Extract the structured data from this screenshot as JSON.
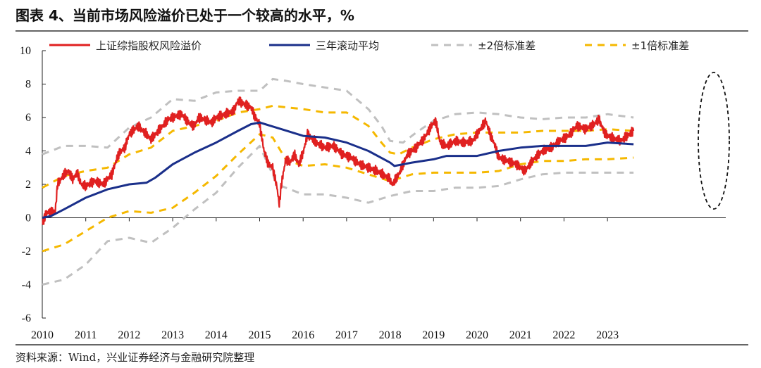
{
  "title": "图表 4、当前市场风险溢价已处于一个较高的水平，%",
  "source": "资料来源：Wind，兴业证券经济与金融研究院整理",
  "chart_data": {
    "type": "line",
    "title": "图表 4、当前市场风险溢价已处于一个较高的水平，%",
    "xlabel": "",
    "ylabel": "",
    "xlim": [
      2010,
      2023.7
    ],
    "ylim": [
      -6,
      10
    ],
    "yticks": [
      -6,
      -4,
      -2,
      0,
      2,
      4,
      6,
      8,
      10
    ],
    "xticks": [
      "2010",
      "2011",
      "2012",
      "2013",
      "2014",
      "2015",
      "2016",
      "2017",
      "2018",
      "2019",
      "2020",
      "2021",
      "2022",
      "2023"
    ],
    "legend_position": "top",
    "grid": false,
    "annotation": "dashed ellipse highlighting 2023",
    "series": [
      {
        "name": "上证综指股权风险溢价",
        "color": "#e02020",
        "style": "solid",
        "points": [
          [
            2010,
            -0.3
          ],
          [
            2010.1,
            0.3
          ],
          [
            2010.3,
            0.4
          ],
          [
            2010.35,
            2.0
          ],
          [
            2010.5,
            2.6
          ],
          [
            2010.6,
            2.8
          ],
          [
            2010.7,
            2.3
          ],
          [
            2010.8,
            2.7
          ],
          [
            2010.9,
            2.0
          ],
          [
            2011,
            1.9
          ],
          [
            2011.2,
            2.2
          ],
          [
            2011.4,
            2.0
          ],
          [
            2011.6,
            2.6
          ],
          [
            2011.75,
            3.8
          ],
          [
            2011.9,
            4.2
          ],
          [
            2012,
            5.0
          ],
          [
            2012.2,
            5.5
          ],
          [
            2012.4,
            5.0
          ],
          [
            2012.5,
            4.7
          ],
          [
            2012.7,
            5.3
          ],
          [
            2012.9,
            5.9
          ],
          [
            2013,
            6.0
          ],
          [
            2013.2,
            6.2
          ],
          [
            2013.4,
            5.6
          ],
          [
            2013.5,
            5.5
          ],
          [
            2013.6,
            6.0
          ],
          [
            2013.8,
            5.8
          ],
          [
            2013.9,
            5.7
          ],
          [
            2014,
            6.0
          ],
          [
            2014.2,
            6.2
          ],
          [
            2014.4,
            6.4
          ],
          [
            2014.5,
            7.0
          ],
          [
            2014.65,
            6.8
          ],
          [
            2014.8,
            6.6
          ],
          [
            2014.9,
            6.0
          ],
          [
            2015,
            5.6
          ],
          [
            2015.1,
            4.0
          ],
          [
            2015.2,
            3.2
          ],
          [
            2015.3,
            3.0
          ],
          [
            2015.4,
            1.8
          ],
          [
            2015.45,
            0.8
          ],
          [
            2015.5,
            2.0
          ],
          [
            2015.6,
            3.5
          ],
          [
            2015.7,
            3.3
          ],
          [
            2015.8,
            3.8
          ],
          [
            2015.9,
            3.2
          ],
          [
            2016,
            3.9
          ],
          [
            2016.1,
            5.0
          ],
          [
            2016.3,
            4.5
          ],
          [
            2016.5,
            4.2
          ],
          [
            2016.7,
            4.3
          ],
          [
            2016.9,
            3.8
          ],
          [
            2017.1,
            3.6
          ],
          [
            2017.3,
            3.2
          ],
          [
            2017.5,
            3.0
          ],
          [
            2017.7,
            2.8
          ],
          [
            2017.9,
            2.5
          ],
          [
            2018,
            2.3
          ],
          [
            2018.05,
            2.0
          ],
          [
            2018.2,
            2.6
          ],
          [
            2018.4,
            3.8
          ],
          [
            2018.6,
            4.2
          ],
          [
            2018.8,
            4.8
          ],
          [
            2018.95,
            5.5
          ],
          [
            2019.05,
            5.8
          ],
          [
            2019.15,
            4.5
          ],
          [
            2019.3,
            4.3
          ],
          [
            2019.5,
            4.6
          ],
          [
            2019.7,
            4.5
          ],
          [
            2019.9,
            4.6
          ],
          [
            2020,
            5.0
          ],
          [
            2020.1,
            5.4
          ],
          [
            2020.2,
            5.8
          ],
          [
            2020.3,
            5.0
          ],
          [
            2020.4,
            4.4
          ],
          [
            2020.5,
            3.6
          ],
          [
            2020.7,
            3.4
          ],
          [
            2020.9,
            3.2
          ],
          [
            2021,
            3.0
          ],
          [
            2021.1,
            2.8
          ],
          [
            2021.3,
            3.5
          ],
          [
            2021.5,
            4.0
          ],
          [
            2021.7,
            4.2
          ],
          [
            2021.9,
            4.6
          ],
          [
            2022.1,
            4.9
          ],
          [
            2022.3,
            5.5
          ],
          [
            2022.5,
            5.3
          ],
          [
            2022.7,
            5.6
          ],
          [
            2022.8,
            5.9
          ],
          [
            2022.95,
            5.0
          ],
          [
            2023.1,
            4.8
          ],
          [
            2023.3,
            4.6
          ],
          [
            2023.5,
            5.0
          ],
          [
            2023.6,
            5.2
          ]
        ]
      },
      {
        "name": "三年滚动平均",
        "color": "#1a2f8a",
        "style": "solid",
        "points": [
          [
            2010,
            0
          ],
          [
            2010.2,
            0.1
          ],
          [
            2010.5,
            0.5
          ],
          [
            2011,
            1.2
          ],
          [
            2011.5,
            1.7
          ],
          [
            2012,
            2.0
          ],
          [
            2012.4,
            2.1
          ],
          [
            2012.6,
            2.4
          ],
          [
            2013,
            3.2
          ],
          [
            2013.5,
            3.9
          ],
          [
            2014,
            4.5
          ],
          [
            2014.5,
            5.2
          ],
          [
            2014.8,
            5.6
          ],
          [
            2015,
            5.7
          ],
          [
            2015.5,
            5.3
          ],
          [
            2016,
            4.9
          ],
          [
            2016.5,
            4.8
          ],
          [
            2017,
            4.5
          ],
          [
            2017.5,
            4.0
          ],
          [
            2018,
            3.3
          ],
          [
            2018.1,
            3.1
          ],
          [
            2018.5,
            3.3
          ],
          [
            2019,
            3.5
          ],
          [
            2019.3,
            3.7
          ],
          [
            2020,
            3.7
          ],
          [
            2020.5,
            4.0
          ],
          [
            2021,
            4.2
          ],
          [
            2021.5,
            4.3
          ],
          [
            2022,
            4.3
          ],
          [
            2022.5,
            4.3
          ],
          [
            2023,
            4.5
          ],
          [
            2023.6,
            4.4
          ]
        ]
      },
      {
        "name": "±2倍标准差",
        "color": "#c0c0c0",
        "style": "dashed",
        "upper": [
          [
            2010,
            3.8
          ],
          [
            2010.5,
            4.3
          ],
          [
            2011,
            4.3
          ],
          [
            2011.5,
            4.2
          ],
          [
            2012,
            5.4
          ],
          [
            2012.5,
            6.0
          ],
          [
            2013,
            7.1
          ],
          [
            2013.5,
            7.0
          ],
          [
            2014,
            7.5
          ],
          [
            2014.5,
            7.6
          ],
          [
            2015,
            7.6
          ],
          [
            2015.3,
            8.3
          ],
          [
            2015.6,
            8.2
          ],
          [
            2016,
            8.0
          ],
          [
            2016.5,
            7.8
          ],
          [
            2017,
            7.6
          ],
          [
            2017.5,
            6.5
          ],
          [
            2017.8,
            5.5
          ],
          [
            2018,
            4.6
          ],
          [
            2018.3,
            4.5
          ],
          [
            2018.6,
            5.1
          ],
          [
            2019,
            5.8
          ],
          [
            2019.5,
            6.2
          ],
          [
            2020,
            6.3
          ],
          [
            2020.5,
            6.2
          ],
          [
            2021,
            6.0
          ],
          [
            2021.5,
            5.9
          ],
          [
            2022,
            6.0
          ],
          [
            2022.5,
            6.0
          ],
          [
            2023,
            6.2
          ],
          [
            2023.6,
            6.0
          ]
        ],
        "lower": [
          [
            2010,
            -4.0
          ],
          [
            2010.5,
            -3.7
          ],
          [
            2011,
            -2.8
          ],
          [
            2011.5,
            -1.4
          ],
          [
            2012,
            -1.2
          ],
          [
            2012.5,
            -1.5
          ],
          [
            2013,
            -0.6
          ],
          [
            2013.5,
            0.5
          ],
          [
            2014,
            1.5
          ],
          [
            2014.5,
            3.0
          ],
          [
            2015,
            4.3
          ],
          [
            2015.4,
            2.0
          ],
          [
            2016,
            1.4
          ],
          [
            2016.5,
            1.4
          ],
          [
            2017,
            1.2
          ],
          [
            2017.5,
            0.9
          ],
          [
            2018,
            1.3
          ],
          [
            2018.5,
            1.6
          ],
          [
            2019,
            1.6
          ],
          [
            2019.5,
            1.8
          ],
          [
            2020,
            1.8
          ],
          [
            2020.5,
            1.9
          ],
          [
            2021,
            2.3
          ],
          [
            2021.5,
            2.6
          ],
          [
            2022,
            2.7
          ],
          [
            2022.5,
            2.7
          ],
          [
            2023,
            2.7
          ],
          [
            2023.6,
            2.7
          ]
        ]
      },
      {
        "name": "±1倍标准差",
        "color": "#f5b800",
        "style": "dashed",
        "upper": [
          [
            2010,
            1.8
          ],
          [
            2010.5,
            2.5
          ],
          [
            2011,
            2.8
          ],
          [
            2011.5,
            3.0
          ],
          [
            2012,
            3.8
          ],
          [
            2012.5,
            4.2
          ],
          [
            2013,
            5.2
          ],
          [
            2013.5,
            5.5
          ],
          [
            2014,
            5.8
          ],
          [
            2014.5,
            6.3
          ],
          [
            2015,
            6.5
          ],
          [
            2015.3,
            6.7
          ],
          [
            2016,
            6.5
          ],
          [
            2016.5,
            6.3
          ],
          [
            2017,
            6.3
          ],
          [
            2017.5,
            5.5
          ],
          [
            2017.8,
            4.5
          ],
          [
            2018,
            3.9
          ],
          [
            2018.2,
            3.8
          ],
          [
            2018.5,
            4.2
          ],
          [
            2019,
            4.7
          ],
          [
            2019.5,
            5.0
          ],
          [
            2020,
            5.1
          ],
          [
            2020.5,
            5.1
          ],
          [
            2021,
            5.1
          ],
          [
            2021.5,
            5.2
          ],
          [
            2022,
            5.2
          ],
          [
            2022.5,
            5.2
          ],
          [
            2023,
            5.3
          ],
          [
            2023.6,
            5.2
          ]
        ],
        "lower": [
          [
            2010,
            -2.0
          ],
          [
            2010.5,
            -1.6
          ],
          [
            2011,
            -0.8
          ],
          [
            2011.5,
            0.0
          ],
          [
            2012,
            0.4
          ],
          [
            2012.5,
            0.3
          ],
          [
            2013,
            0.6
          ],
          [
            2013.5,
            1.5
          ],
          [
            2014,
            2.5
          ],
          [
            2014.5,
            3.8
          ],
          [
            2015,
            5.0
          ],
          [
            2015.3,
            4.8
          ],
          [
            2015.6,
            3.5
          ],
          [
            2016,
            3.1
          ],
          [
            2016.5,
            3.2
          ],
          [
            2017,
            3.0
          ],
          [
            2017.5,
            2.6
          ],
          [
            2018,
            2.2
          ],
          [
            2018.5,
            2.6
          ],
          [
            2019,
            2.7
          ],
          [
            2019.5,
            2.7
          ],
          [
            2020,
            2.7
          ],
          [
            2020.5,
            2.8
          ],
          [
            2021,
            3.2
          ],
          [
            2021.5,
            3.4
          ],
          [
            2022,
            3.4
          ],
          [
            2022.5,
            3.5
          ],
          [
            2023,
            3.5
          ],
          [
            2023.6,
            3.6
          ]
        ]
      }
    ]
  }
}
